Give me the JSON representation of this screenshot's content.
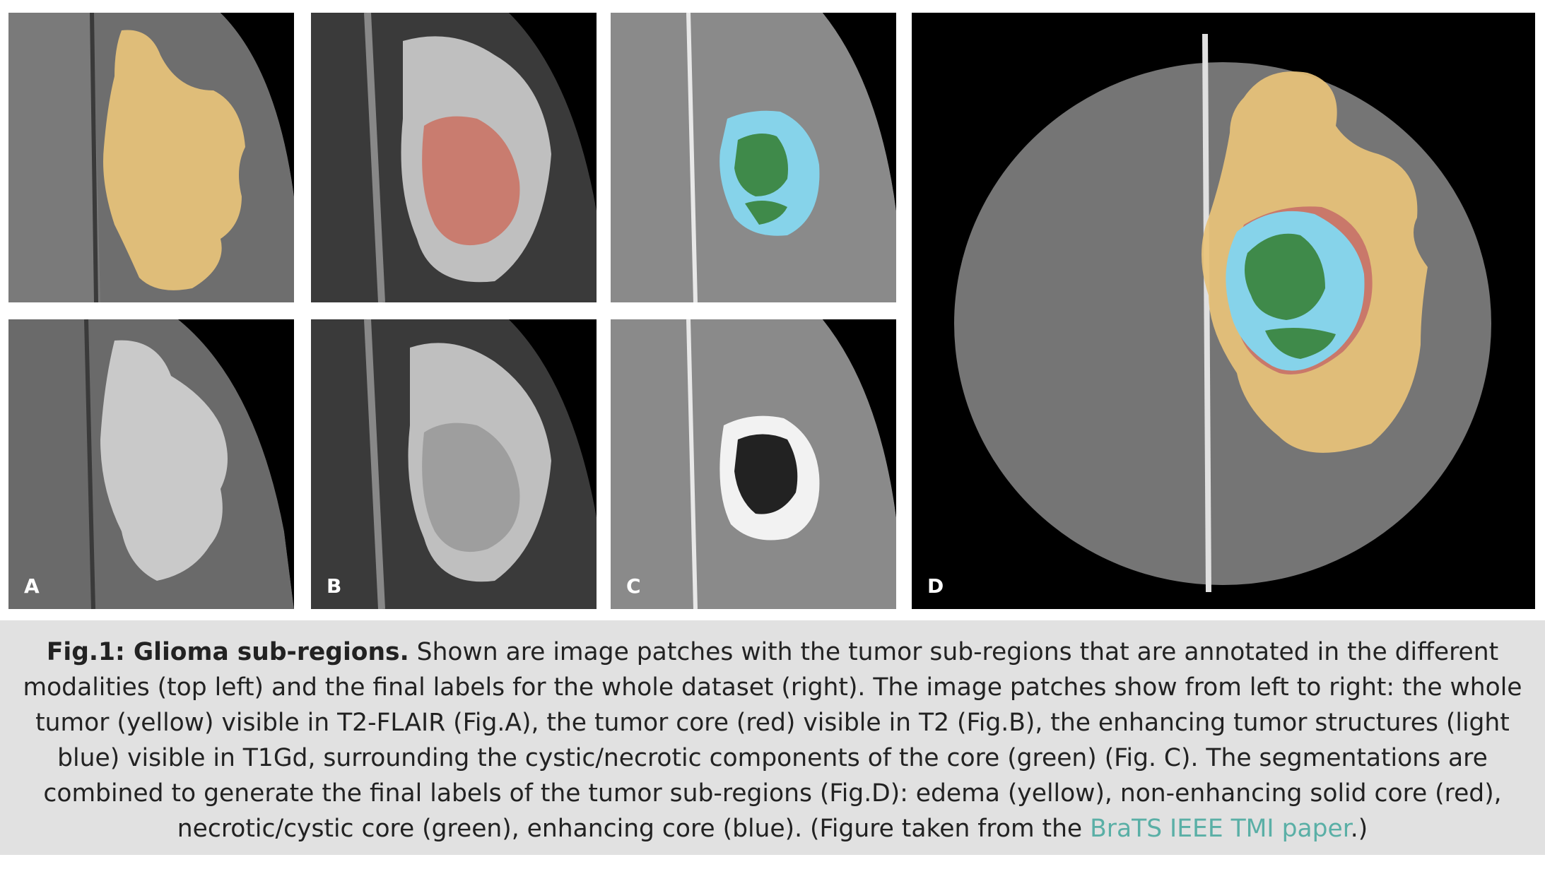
{
  "figure": {
    "panels": [
      {
        "id": "A-top",
        "label": ""
      },
      {
        "id": "B-top",
        "label": ""
      },
      {
        "id": "C-top",
        "label": ""
      },
      {
        "id": "A-bottom",
        "label": "A"
      },
      {
        "id": "B-bottom",
        "label": "B"
      },
      {
        "id": "C-bottom",
        "label": "C"
      },
      {
        "id": "D",
        "label": "D"
      }
    ],
    "colors": {
      "edema_yellow": "#e8c37a",
      "tumor_core_red": "#c9786a",
      "enhancing_blue": "#86d3ea",
      "necrotic_green": "#3f8a4a",
      "caption_bg": "#e1e1e1",
      "link": "#5aafa6"
    }
  },
  "caption": {
    "bold": "Fig.1: Glioma sub-regions.",
    "text": " Shown are image patches with the tumor sub-regions that are annotated in the different modalities (top left) and the final labels for the whole dataset (right). The image patches show from left to right: the whole tumor (yellow) visible in T2-FLAIR (Fig.A), the tumor core (red) visible in T2 (Fig.B), the enhancing tumor structures (light blue) visible in T1Gd, surrounding the cystic/necrotic components of the core (green) (Fig. C). The segmentations are combined to generate the final labels of the tumor sub-regions (Fig.D): edema (yellow), non-enhancing solid core (red), necrotic/cystic core (green), enhancing core (blue). (Figure taken from the ",
    "link": "BraTS IEEE TMI paper",
    "end": ".)"
  }
}
